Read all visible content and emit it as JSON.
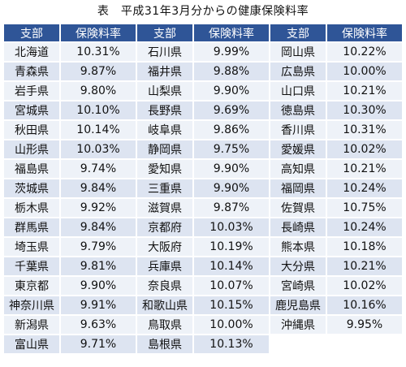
{
  "title": "表　平成31年3月分からの健康保険料率",
  "headers": [
    "支部",
    "保険料率",
    "支部",
    "保険料率",
    "支部",
    "保険料率"
  ],
  "rows": [
    [
      "北海道",
      "10.31%",
      "石川県",
      "9.99%",
      "岡山県",
      "10.22%"
    ],
    [
      "青森県",
      "9.87%",
      "福井県",
      "9.88%",
      "広島県",
      "10.00%"
    ],
    [
      "岩手県",
      "9.80%",
      "山梨県",
      "9.90%",
      "山口県",
      "10.21%"
    ],
    [
      "宮城県",
      "10.10%",
      "長野県",
      "9.69%",
      "徳島県",
      "10.30%"
    ],
    [
      "秋田県",
      "10.14%",
      "岐阜県",
      "9.86%",
      "香川県",
      "10.31%"
    ],
    [
      "山形県",
      "10.03%",
      "静岡県",
      "9.75%",
      "愛媛県",
      "10.02%"
    ],
    [
      "福島県",
      "9.74%",
      "愛知県",
      "9.90%",
      "高知県",
      "10.21%"
    ],
    [
      "茨城県",
      "9.84%",
      "三重県",
      "9.90%",
      "福岡県",
      "10.24%"
    ],
    [
      "栃木県",
      "9.92%",
      "滋賀県",
      "9.87%",
      "佐賀県",
      "10.75%"
    ],
    [
      "群馬県",
      "9.84%",
      "京都府",
      "10.03%",
      "長崎県",
      "10.24%"
    ],
    [
      "埼玉県",
      "9.79%",
      "大阪府",
      "10.19%",
      "熊本県",
      "10.18%"
    ],
    [
      "千葉県",
      "9.81%",
      "兵庫県",
      "10.14%",
      "大分県",
      "10.21%"
    ],
    [
      "東京都",
      "9.90%",
      "奈良県",
      "10.07%",
      "宮崎県",
      "10.02%"
    ],
    [
      "神奈川県",
      "9.91%",
      "和歌山県",
      "10.15%",
      "鹿児島県",
      "10.16%"
    ],
    [
      "新潟県",
      "9.63%",
      "鳥取県",
      "10.00%",
      "沖縄県",
      "9.95%"
    ],
    [
      "富山県",
      "9.71%",
      "島根県",
      "10.13%",
      "",
      ""
    ]
  ]
}
